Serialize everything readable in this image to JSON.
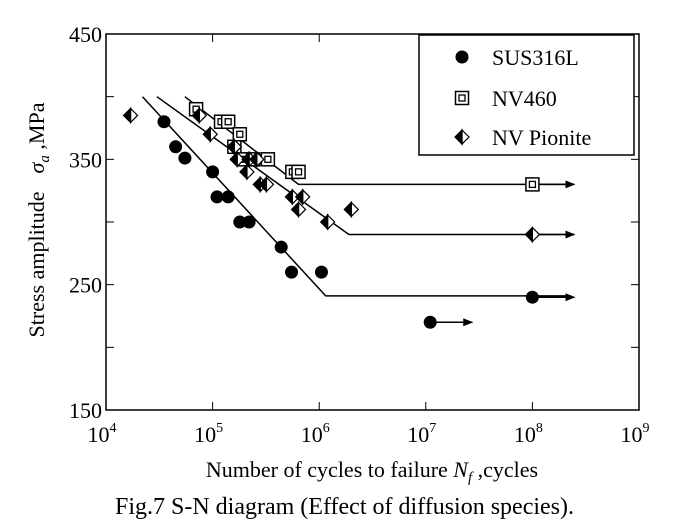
{
  "chart_data": {
    "type": "scatter",
    "xscale": "log",
    "xlim": [
      10000,
      1000000000
    ],
    "ylim": [
      150,
      450
    ],
    "xticks": [
      {
        "base": "10",
        "exp": "4"
      },
      {
        "base": "10",
        "exp": "5"
      },
      {
        "base": "10",
        "exp": "6"
      },
      {
        "base": "10",
        "exp": "7"
      },
      {
        "base": "10",
        "exp": "8"
      },
      {
        "base": "10",
        "exp": "9"
      }
    ],
    "yticks": [
      "150",
      "250",
      "350",
      "450"
    ],
    "ytick_values": [
      150,
      250,
      350,
      450
    ],
    "xlabel": {
      "prefix": "Number of cycles to failure ",
      "symbol": "N",
      "subscript": "f",
      "suffix": " ,cycles"
    },
    "ylabel": {
      "text": "Stress amplitude",
      "symbol": "σ",
      "subscript": "a",
      "suffix": " ,MPa"
    },
    "legend_position": "top-right",
    "series": [
      {
        "name": "SUS316L",
        "marker": "filled-circle",
        "color": "#000000",
        "points": [
          [
            35000,
            380
          ],
          [
            45000,
            360
          ],
          [
            55000,
            351
          ],
          [
            100000,
            340
          ],
          [
            110000,
            320
          ],
          [
            140000,
            320
          ],
          [
            180000,
            300
          ],
          [
            220000,
            300
          ],
          [
            440000,
            280
          ],
          [
            550000,
            260
          ],
          [
            1050000,
            260
          ],
          [
            100000000,
            240
          ]
        ],
        "runouts": [
          [
            11000000,
            220
          ],
          [
            100000000,
            240
          ]
        ],
        "fit_line": [
          [
            22000,
            400
          ],
          [
            1150000,
            241
          ],
          [
            230000000,
            241
          ]
        ]
      },
      {
        "name": "NV460",
        "marker": "square-in-square",
        "color": "#000000",
        "points": [
          [
            70000,
            390
          ],
          [
            120000,
            380
          ],
          [
            140000,
            380
          ],
          [
            160000,
            360
          ],
          [
            180000,
            370
          ],
          [
            200000,
            350
          ],
          [
            240000,
            350
          ],
          [
            330000,
            350
          ],
          [
            560000,
            340
          ],
          [
            640000,
            340
          ],
          [
            100000000,
            330
          ]
        ],
        "runouts": [
          [
            100000000,
            330
          ]
        ],
        "fit_line": [
          [
            55000,
            400
          ],
          [
            640000,
            330
          ],
          [
            230000000,
            330
          ]
        ]
      },
      {
        "name": "NV Pionite",
        "marker": "half-filled-diamond",
        "color": "#000000",
        "points": [
          [
            17000,
            385
          ],
          [
            75000,
            385
          ],
          [
            95000,
            370
          ],
          [
            160000,
            360
          ],
          [
            170000,
            350
          ],
          [
            210000,
            340
          ],
          [
            220000,
            350
          ],
          [
            260000,
            350
          ],
          [
            280000,
            330
          ],
          [
            320000,
            330
          ],
          [
            560000,
            320
          ],
          [
            640000,
            310
          ],
          [
            700000,
            320
          ],
          [
            1200000,
            300
          ],
          [
            2000000,
            310
          ],
          [
            100000000,
            290
          ]
        ],
        "runouts": [
          [
            100000000,
            290
          ]
        ],
        "fit_line": [
          [
            30000,
            400
          ],
          [
            1900000,
            290
          ],
          [
            230000000,
            290
          ]
        ]
      }
    ]
  },
  "caption": "Fig.7 S-N diagram (Effect of diffusion species)."
}
